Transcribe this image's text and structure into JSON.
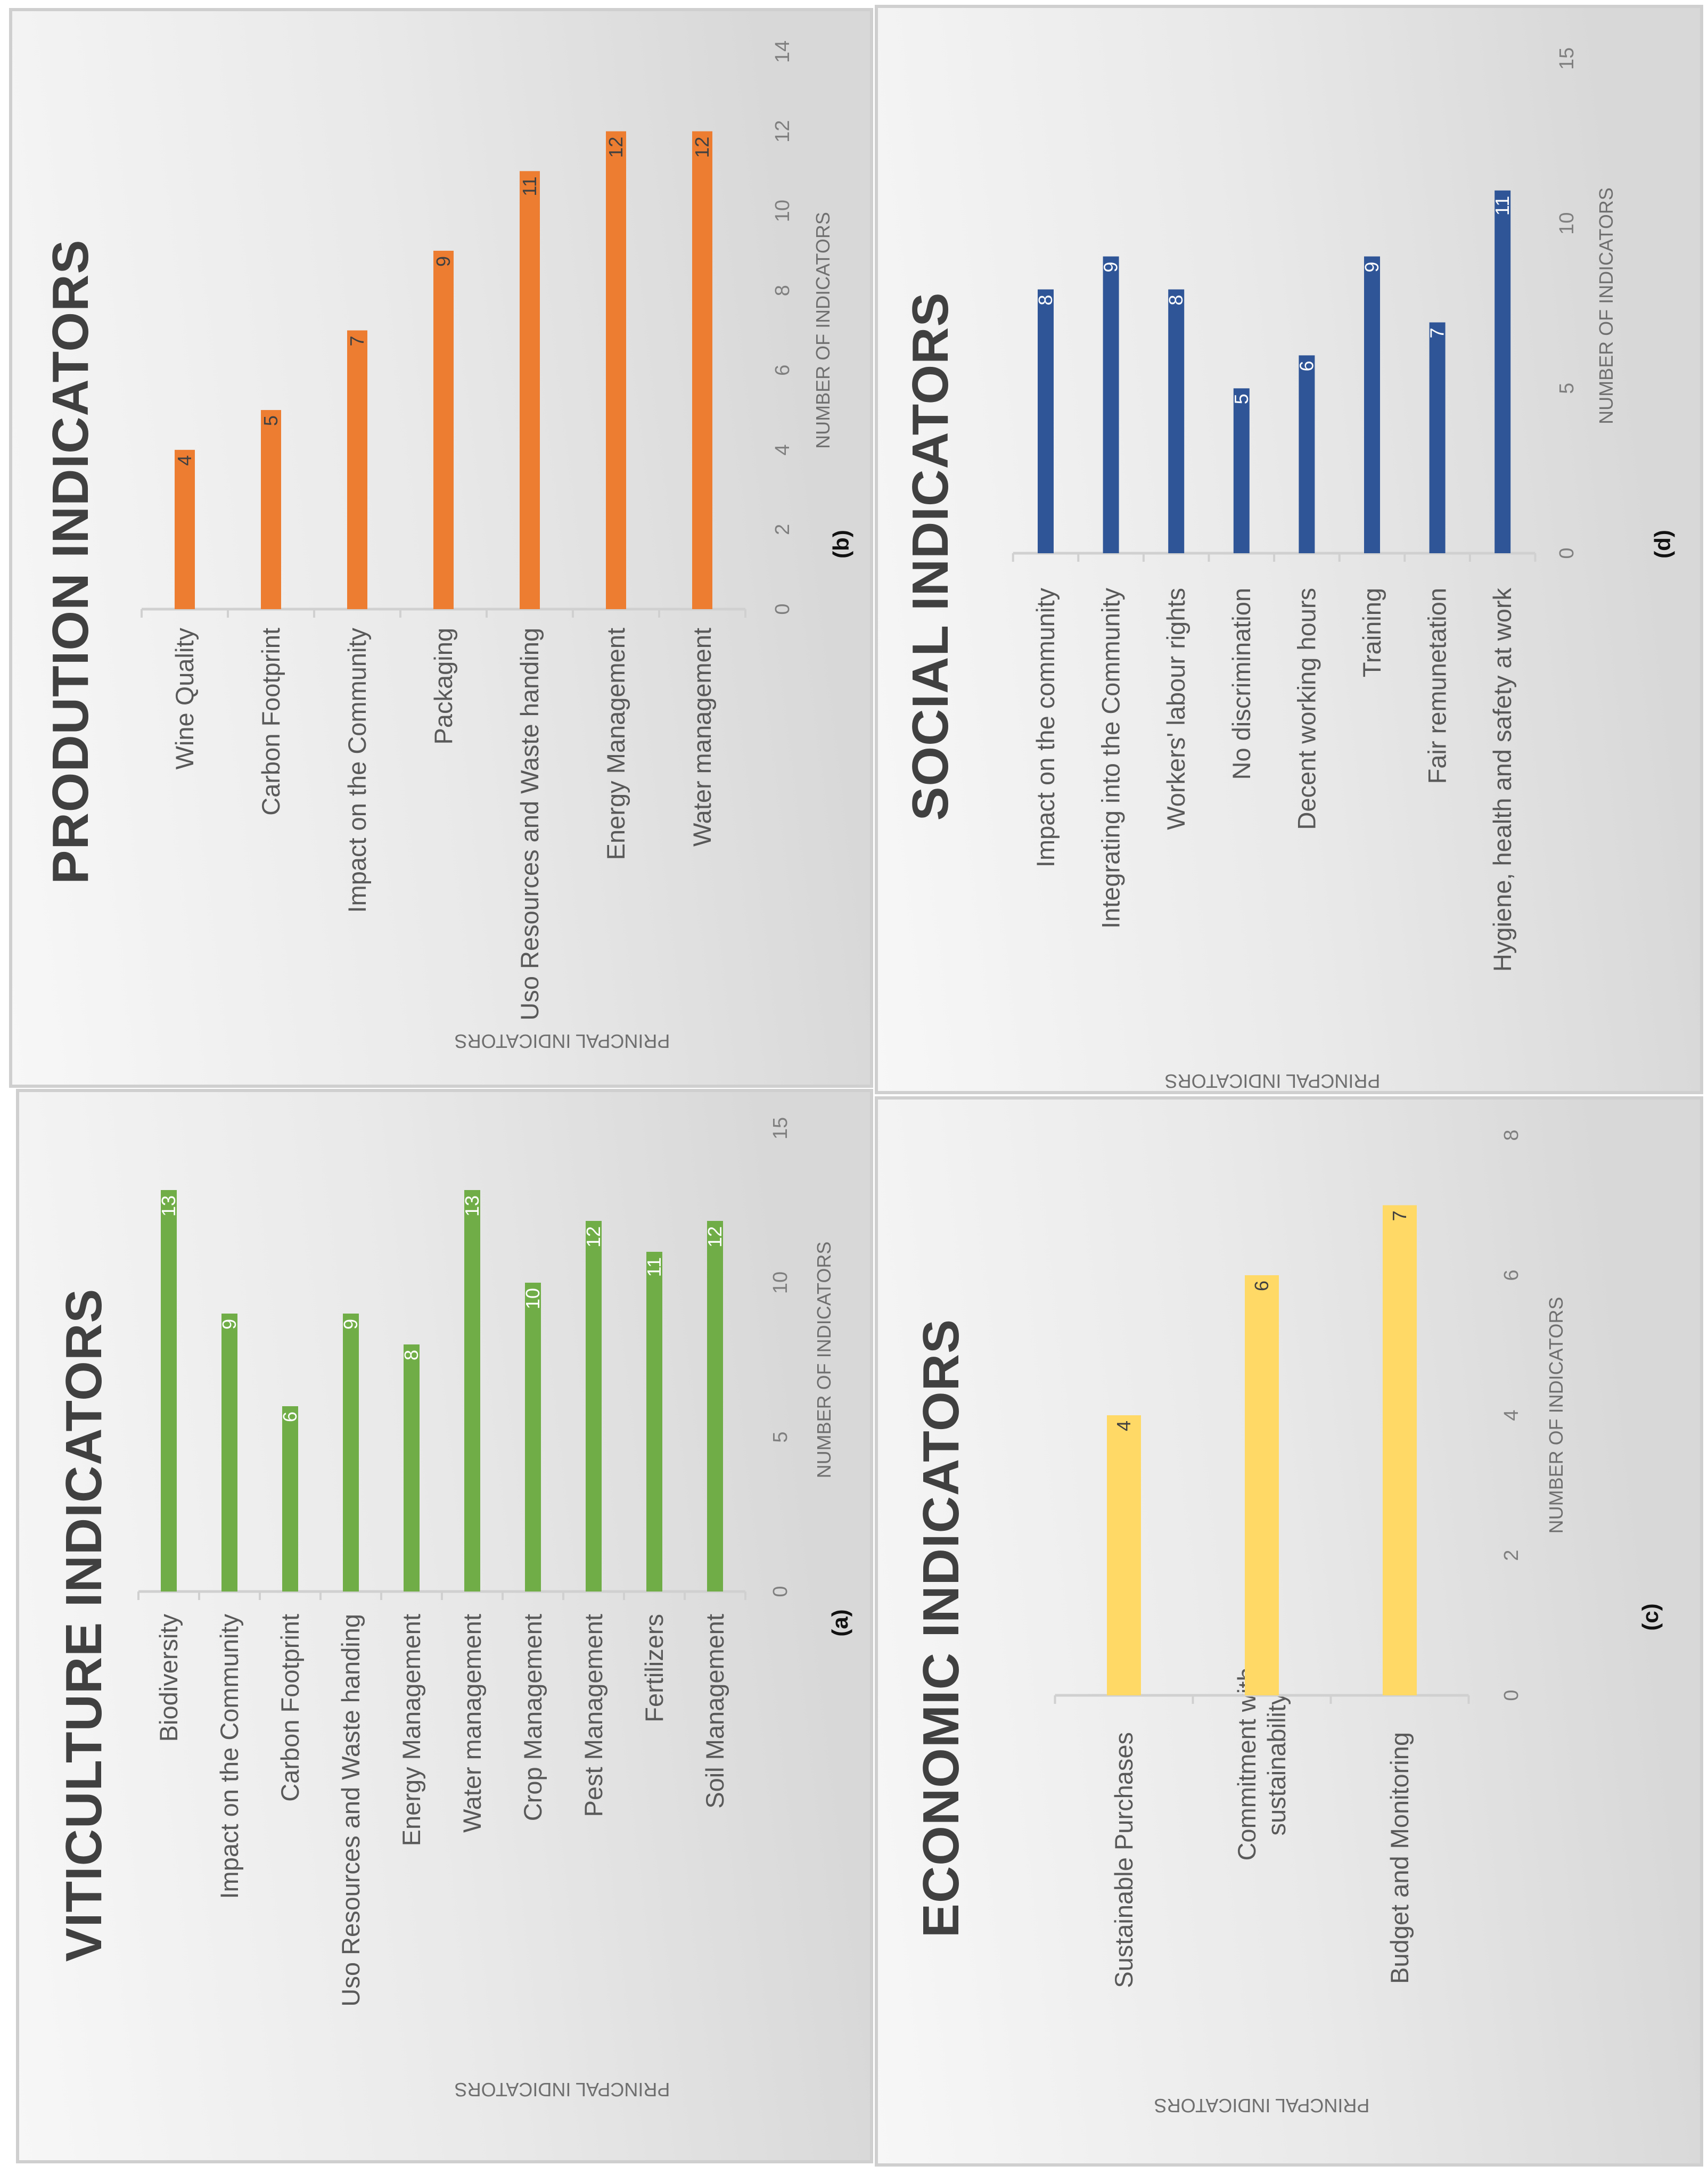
{
  "figure": {
    "orientation_note": "figure is rotated 90 degrees counter-clockwise"
  },
  "chart_data": [
    {
      "id": "a",
      "type": "bar",
      "orientation": "horizontal",
      "panel_label": "(a)",
      "title": "VITICULTURE INDICATORS",
      "xlabel": "NUMBER OF INDICATORS",
      "ylabel": "PRINCPAL INDICATORS",
      "color": "#70AD47",
      "data_label_color": "#ffffff",
      "categories": [
        "Biodiversity",
        "Impact on the Community",
        "Carbon Footprint",
        "Uso Resources and Waste handing",
        "Energy Management",
        "Water management",
        "Crop Management",
        "Pest Management",
        "Fertilizers",
        "Soil Management"
      ],
      "values": [
        13,
        9,
        6,
        9,
        8,
        13,
        10,
        12,
        11,
        12
      ],
      "xlim": [
        0,
        15
      ],
      "ticks": [
        0,
        5,
        10,
        15
      ],
      "grid": false
    },
    {
      "id": "b",
      "type": "bar",
      "orientation": "horizontal",
      "panel_label": "(b)",
      "title": "PRODUTION INDICATORS",
      "xlabel": "NUMBER OF INDICATORS",
      "ylabel": "PRINCPAL INDICATORS",
      "color": "#ED7D31",
      "data_label_color": "#404040",
      "categories": [
        "Wine Quality",
        "Carbon Footprint",
        "Impact on the Community",
        "Packaging",
        "Uso Resources and Waste handing",
        "Energy Management",
        "Water management"
      ],
      "values": [
        4,
        5,
        7,
        9,
        11,
        12,
        12
      ],
      "xlim": [
        0,
        14
      ],
      "ticks": [
        0,
        2,
        4,
        6,
        8,
        10,
        12,
        14
      ],
      "grid": false
    },
    {
      "id": "c",
      "type": "bar",
      "orientation": "horizontal",
      "panel_label": "(c)",
      "title": "ECONOMIC INDICATORS",
      "xlabel": "NUMBER OF INDICATORS",
      "ylabel": "PRINCPAL INDICATORS",
      "color": "#FFD966",
      "data_label_color": "#404040",
      "categories": [
        "Sustainable Purchases",
        "Commitment with sustainability",
        "Budget and Monitoring"
      ],
      "values": [
        4,
        6,
        7
      ],
      "xlim": [
        0,
        8
      ],
      "ticks": [
        0,
        2,
        4,
        6,
        8
      ],
      "grid": false
    },
    {
      "id": "d",
      "type": "bar",
      "orientation": "horizontal",
      "panel_label": "(d)",
      "title": "SOCIAL INDICATORS",
      "xlabel": "NUMBER OF INDICATORS",
      "ylabel": "PRINCPAL INDICATORS",
      "color": "#2F5597",
      "data_label_color": "#ffffff",
      "categories": [
        "Impact on the community",
        "Integrating into the Community",
        "Workers' labour rights",
        "No discrimination",
        "Decent working hours",
        "Training",
        "Fair remunetation",
        "Hygiene, health and safety at work"
      ],
      "values": [
        8,
        9,
        8,
        5,
        6,
        9,
        7,
        11
      ],
      "xlim": [
        0,
        15
      ],
      "ticks": [
        0,
        5,
        10,
        15
      ],
      "grid": false
    }
  ]
}
